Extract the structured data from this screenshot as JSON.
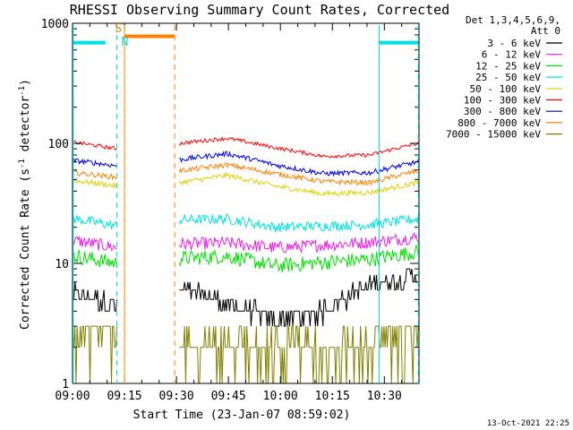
{
  "chart_data": {
    "type": "line",
    "title": "RHESSI Observing Summary Count Rates, Corrected",
    "xlabel": "Start Time (23-Jan-07 08:59:02)",
    "ylabel_main": "Corrected Count Rate (s",
    "ylabel_sup1": "-1",
    "ylabel_mid": " detector",
    "ylabel_sup2": "-1",
    "ylabel_end": ")",
    "y_scale": "log",
    "ylim": [
      1,
      1000
    ],
    "x_range_minutes": [
      0,
      100
    ],
    "x_ticks": [
      {
        "t": 0,
        "label": "09:00"
      },
      {
        "t": 15,
        "label": "09:15"
      },
      {
        "t": 30,
        "label": "09:30"
      },
      {
        "t": 45,
        "label": "09:45"
      },
      {
        "t": 60,
        "label": "10:00"
      },
      {
        "t": 75,
        "label": "10:15"
      },
      {
        "t": 90,
        "label": "10:30"
      }
    ],
    "y_ticks": [
      {
        "v": 1,
        "label": "1"
      },
      {
        "v": 10,
        "label": "10"
      },
      {
        "v": 100,
        "label": "100"
      },
      {
        "v": 1000,
        "label": "1000"
      }
    ],
    "legend_header": [
      "Det 1,3,4,5,6,9,",
      "Att 0"
    ],
    "legend_position": "right",
    "series": [
      {
        "name": "3 - 6 keV",
        "color": "#000000",
        "seg1": [
          5.8,
          4.4
        ],
        "seg2": [
          6.2,
          4.6,
          3.4,
          4.0,
          6.6,
          8.0
        ],
        "noise": 0.1
      },
      {
        "name": "6 - 12 keV",
        "color": "#e81ee8",
        "seg1": [
          15.5,
          13.5
        ],
        "seg2": [
          14.5,
          14.8,
          13.5,
          14.2,
          15.0,
          16.5
        ],
        "noise": 0.05
      },
      {
        "name": "12 - 25 keV",
        "color": "#00e000",
        "seg1": [
          11.5,
          10.0
        ],
        "seg2": [
          11.0,
          11.5,
          9.5,
          10.2,
          10.8,
          12.5
        ],
        "noise": 0.06
      },
      {
        "name": "25 - 50 keV",
        "color": "#00e0e0",
        "seg1": [
          23.5,
          20.5
        ],
        "seg2": [
          23.0,
          23.5,
          20.0,
          20.5,
          21.0,
          23.5
        ],
        "noise": 0.04
      },
      {
        "name": "50 - 100 keV",
        "color": "#e0d000",
        "seg1": [
          49,
          44
        ],
        "seg2": [
          47,
          54,
          44,
          38,
          39,
          47
        ],
        "noise": 0.02
      },
      {
        "name": "100 - 300 keV",
        "color": "#ff0000",
        "seg1": [
          102,
          90
        ],
        "seg2": [
          100,
          110,
          92,
          78,
          80,
          100
        ],
        "noise": 0.015
      },
      {
        "name": "300 - 800 keV",
        "color": "#0000e0",
        "seg1": [
          72,
          65
        ],
        "seg2": [
          73,
          82,
          66,
          56,
          57,
          70
        ],
        "noise": 0.02
      },
      {
        "name": "800 - 7000 keV",
        "color": "#ff8000",
        "seg1": [
          57,
          52
        ],
        "seg2": [
          59,
          66,
          56,
          48,
          47,
          59
        ],
        "noise": 0.02
      },
      {
        "name": "7000 - 15000 keV",
        "color": "#808000",
        "seg1": [
          3.0,
          2.6
        ],
        "seg2": [
          2.0,
          2.4,
          2.2,
          2.0,
          2.4,
          3.3
        ],
        "noise": 0.25
      }
    ],
    "segments_minutes": {
      "seg1": [
        0.4,
        12.8
      ],
      "seg2": [
        30.8,
        99.8
      ]
    },
    "orange_bar": {
      "t0": 15.0,
      "t1": 29.5,
      "value": 780
    },
    "cyan_bars": [
      {
        "t0": 0.2,
        "t1": 9.5,
        "value": 690
      },
      {
        "t0": 88.5,
        "t1": 99.8,
        "value": 690
      }
    ],
    "vlines": [
      {
        "t": 0.2,
        "color": "#00e0e0",
        "dash": false
      },
      {
        "t": 12.8,
        "color": "#00e0e0",
        "dash": true
      },
      {
        "t": 15.0,
        "color": "#ff8000",
        "dash": false
      },
      {
        "t": 29.5,
        "color": "#ff8000",
        "dash": true
      },
      {
        "t": 88.5,
        "color": "#00e0e0",
        "dash": false
      },
      {
        "t": 99.8,
        "color": "#00e0e0",
        "dash": true
      }
    ],
    "markers": [
      {
        "text": "S",
        "t": 13.2,
        "value": 900,
        "color": "#ff8000"
      },
      {
        "text": "N",
        "t": 15.1,
        "value": 700,
        "color": "#00e0e0"
      }
    ],
    "timestamp": "13-Oct-2021 22:25"
  }
}
